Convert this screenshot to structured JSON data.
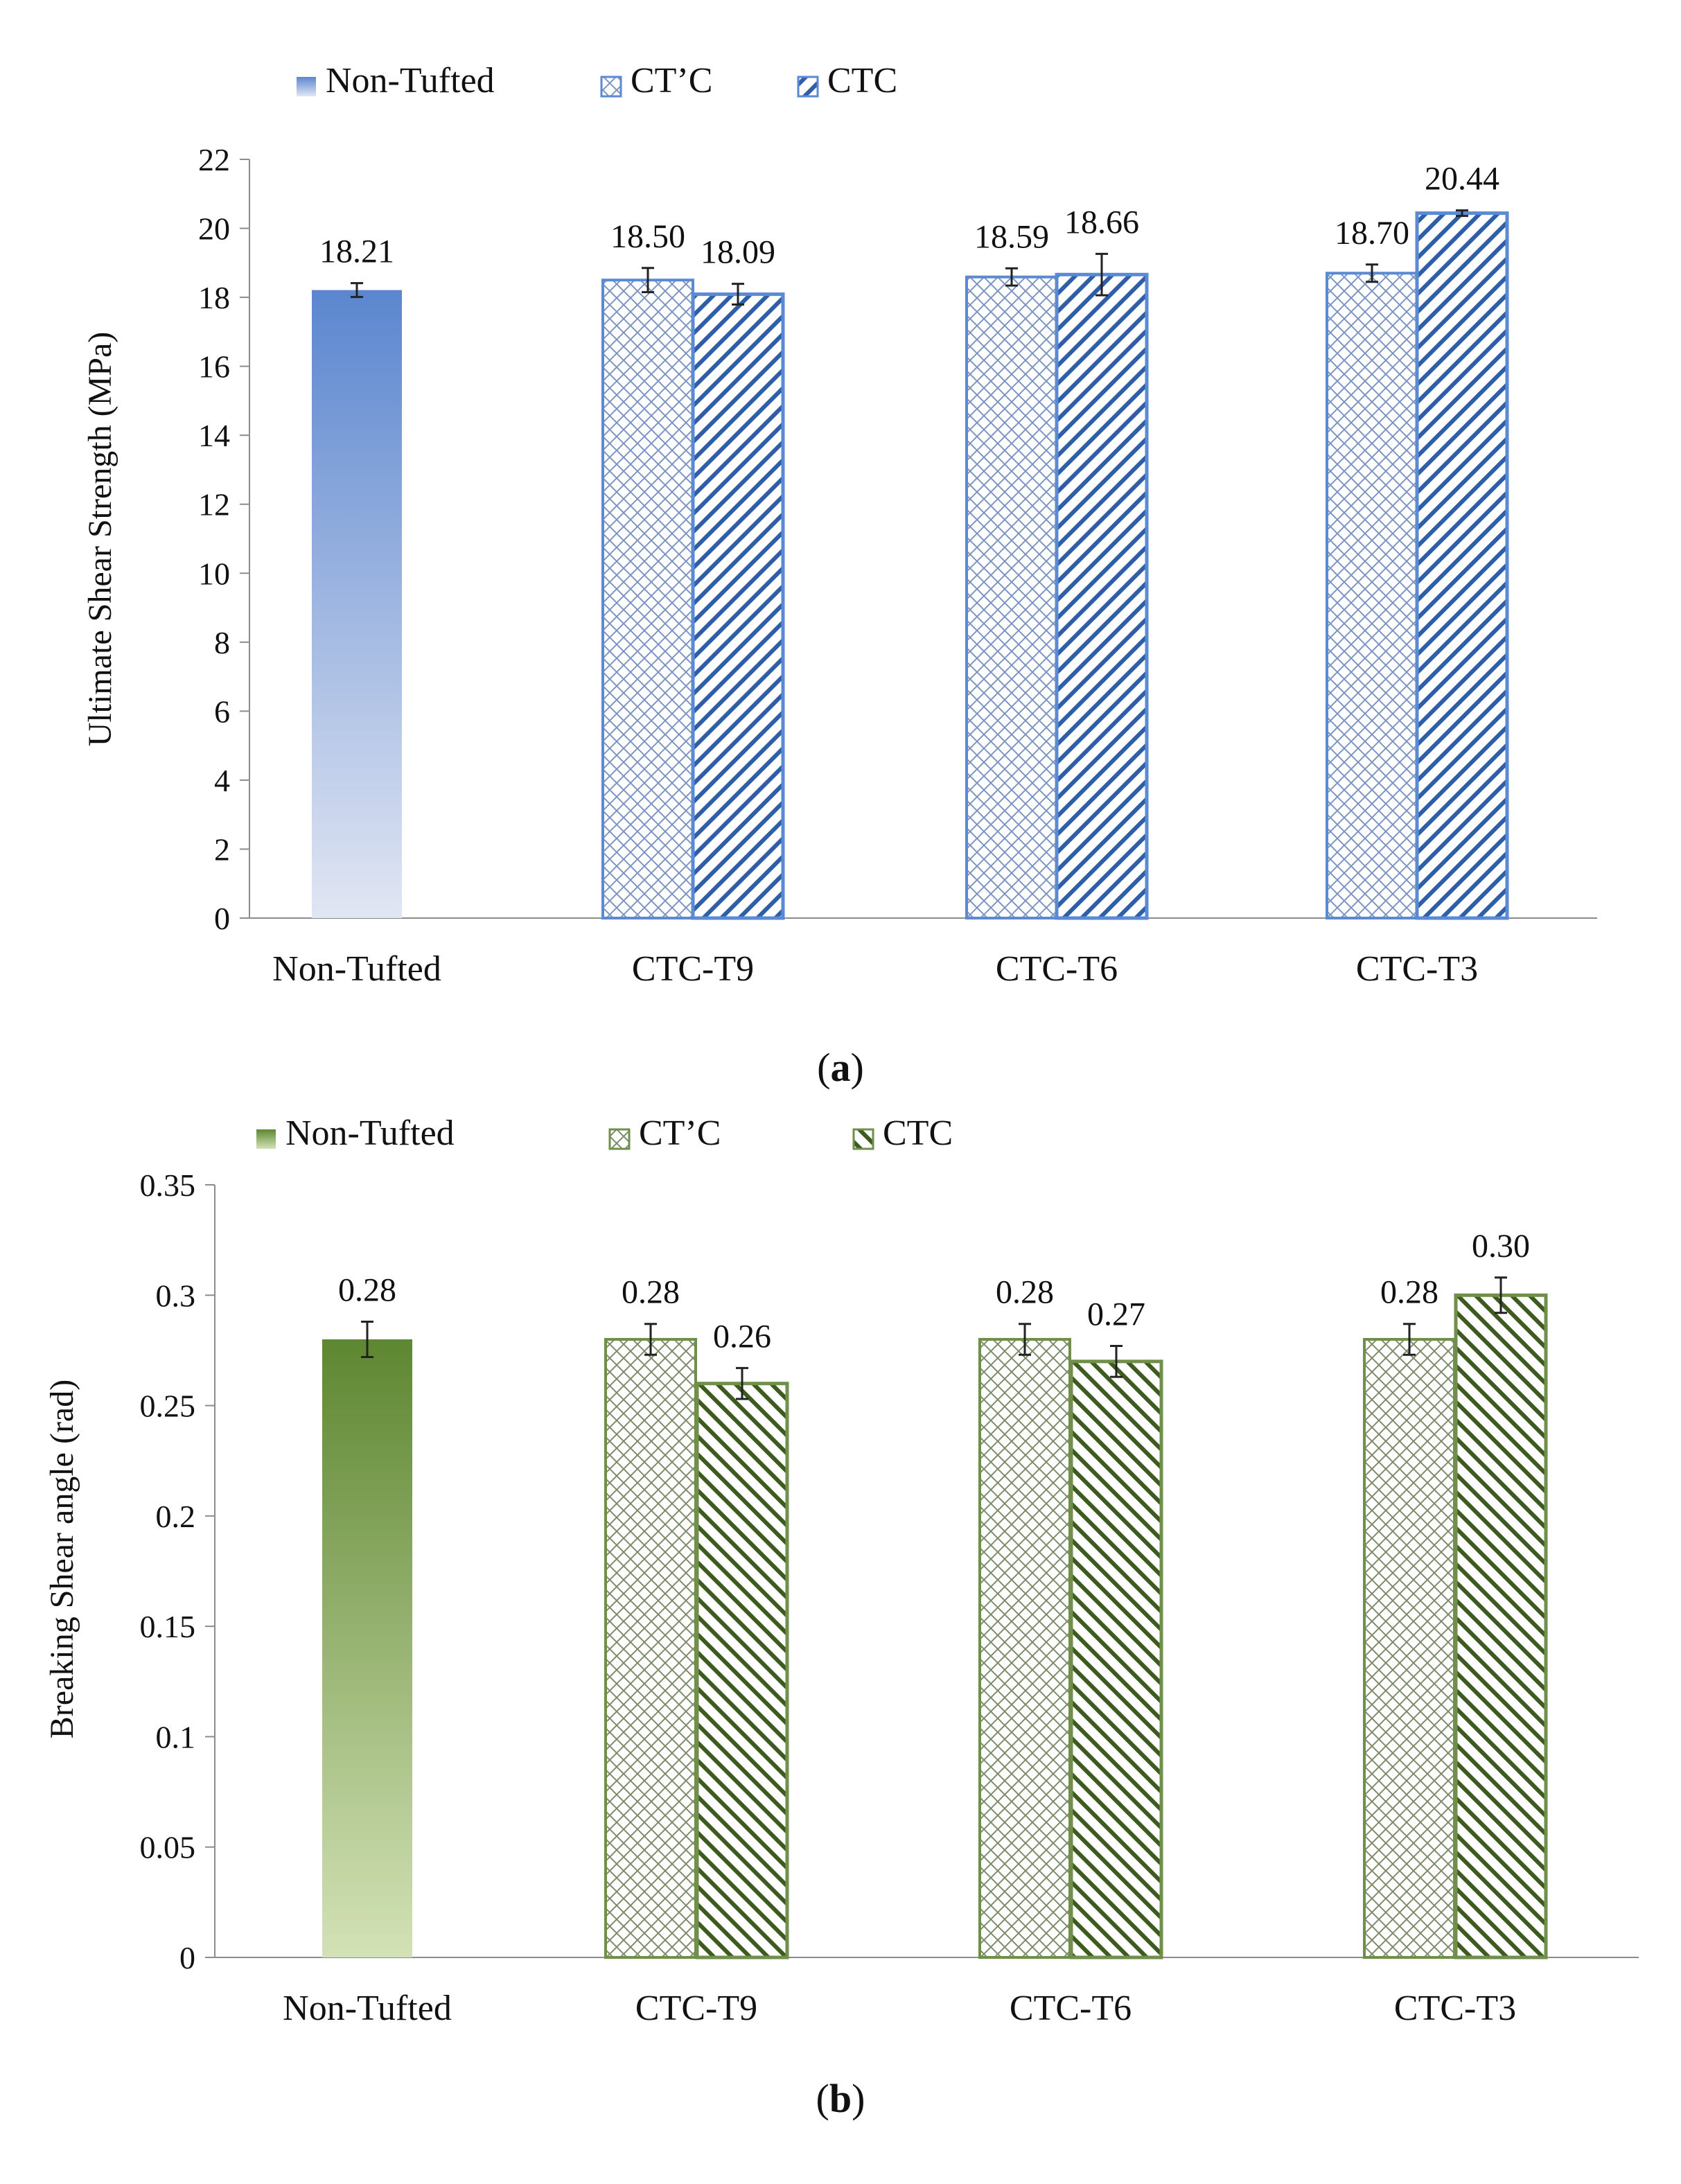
{
  "chart_data": [
    {
      "panel_label": "a",
      "type": "bar",
      "categories": [
        "Non-Tufted",
        "CTC-T9",
        "CTC-T6",
        "CTC-T3"
      ],
      "ylabel": "Ultimate Shear Strength (MPa)",
      "xlabel": "",
      "ylim": [
        0,
        22
      ],
      "yticks": [
        0,
        2,
        4,
        6,
        8,
        10,
        12,
        14,
        16,
        18,
        20,
        22
      ],
      "ytick_labels": [
        "0",
        "2",
        "4",
        "6",
        "8",
        "10",
        "12",
        "14",
        "16",
        "18",
        "20",
        "22"
      ],
      "grid": false,
      "legend_position": "top",
      "legend": [
        {
          "name": "Non-Tufted",
          "pattern": "gradient"
        },
        {
          "name": "CT’C",
          "pattern": "crosshatch"
        },
        {
          "name": "CTC",
          "pattern": "diagonal"
        }
      ],
      "bars": [
        {
          "category": "Non-Tufted",
          "series": "Non-Tufted",
          "value": 18.21,
          "error": 0.2,
          "label": "18.21"
        },
        {
          "category": "CTC-T9",
          "series": "CT’C",
          "value": 18.5,
          "error": 0.35,
          "label": "18.50"
        },
        {
          "category": "CTC-T9",
          "series": "CTC",
          "value": 18.09,
          "error": 0.3,
          "label": "18.09"
        },
        {
          "category": "CTC-T6",
          "series": "CT’C",
          "value": 18.59,
          "error": 0.25,
          "label": "18.59"
        },
        {
          "category": "CTC-T6",
          "series": "CTC",
          "value": 18.66,
          "error": 0.6,
          "label": "18.66"
        },
        {
          "category": "CTC-T3",
          "series": "CT’C",
          "value": 18.7,
          "error": 0.25,
          "label": "18.70"
        },
        {
          "category": "CTC-T3",
          "series": "CTC",
          "value": 20.44,
          "error": 0.08,
          "label": "20.44"
        }
      ],
      "colors": {
        "main": "#5b86cf",
        "light": "#e1e6f3",
        "stroke": "#5a8ad4",
        "hatch": "#2f5ea8",
        "cross": "#7d95c2"
      }
    },
    {
      "panel_label": "b",
      "type": "bar",
      "categories": [
        "Non-Tufted",
        "CTC-T9",
        "CTC-T6",
        "CTC-T3"
      ],
      "ylabel": "Breaking Shear angle (rad)",
      "xlabel": "",
      "ylim": [
        0,
        0.35
      ],
      "yticks": [
        0,
        0.05,
        0.1,
        0.15,
        0.2,
        0.25,
        0.3,
        0.35
      ],
      "ytick_labels": [
        "0",
        "0.05",
        "0.1",
        "0.15",
        "0.2",
        "0.25",
        "0.3",
        "0.35"
      ],
      "grid": false,
      "legend_position": "top",
      "legend": [
        {
          "name": "Non-Tufted",
          "pattern": "gradient"
        },
        {
          "name": "CT’C",
          "pattern": "crosshatch"
        },
        {
          "name": "CTC",
          "pattern": "diagonal"
        }
      ],
      "bars": [
        {
          "category": "Non-Tufted",
          "series": "Non-Tufted",
          "value": 0.28,
          "error": 0.008,
          "label": "0.28"
        },
        {
          "category": "CTC-T9",
          "series": "CT’C",
          "value": 0.28,
          "error": 0.007,
          "label": "0.28"
        },
        {
          "category": "CTC-T9",
          "series": "CTC",
          "value": 0.26,
          "error": 0.007,
          "label": "0.26"
        },
        {
          "category": "CTC-T6",
          "series": "CT’C",
          "value": 0.28,
          "error": 0.007,
          "label": "0.28"
        },
        {
          "category": "CTC-T6",
          "series": "CTC",
          "value": 0.27,
          "error": 0.007,
          "label": "0.27"
        },
        {
          "category": "CTC-T3",
          "series": "CT’C",
          "value": 0.28,
          "error": 0.007,
          "label": "0.28"
        },
        {
          "category": "CTC-T3",
          "series": "CTC",
          "value": 0.3,
          "error": 0.008,
          "label": "0.30"
        }
      ],
      "colors": {
        "main": "#5e8731",
        "light": "#d3e2b6",
        "stroke": "#6f8f4a",
        "hatch": "#3d5a1f",
        "cross": "#7c8c6c"
      }
    }
  ]
}
